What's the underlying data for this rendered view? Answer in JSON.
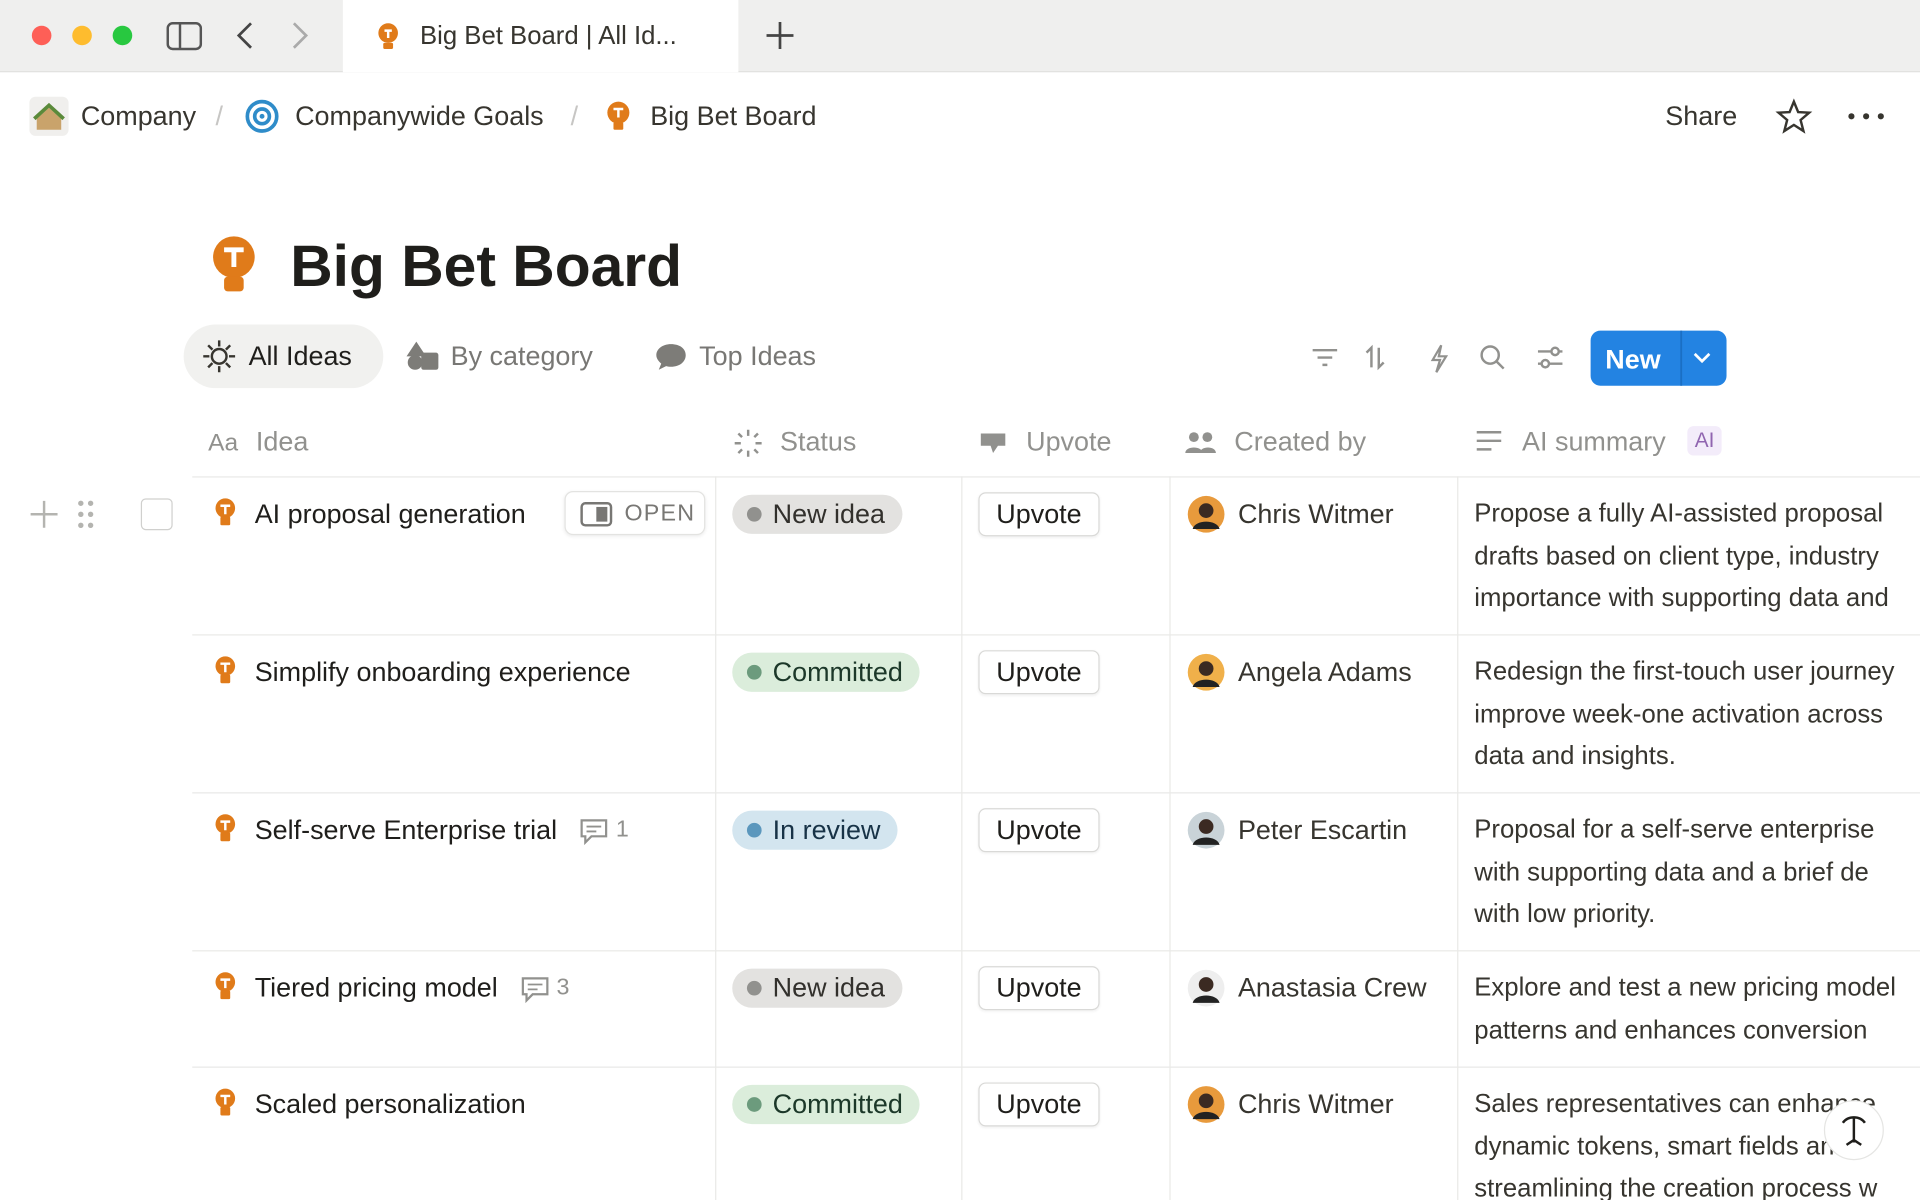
{
  "browser": {
    "tab_title": "Big Bet Board | All Id..."
  },
  "breadcrumbs": [
    "Company",
    "Companywide Goals",
    "Big Bet Board"
  ],
  "topbar": {
    "share": "Share"
  },
  "page": {
    "title": "Big Bet Board"
  },
  "views": [
    "All Ideas",
    "By category",
    "Top Ideas"
  ],
  "toolbar": {
    "new_button": "New"
  },
  "table": {
    "columns": [
      "Idea",
      "Status",
      "Upvote",
      "Created by",
      "AI summary"
    ],
    "ai_badge": "AI",
    "open_button": "OPEN",
    "rows": [
      {
        "idea": "AI proposal generation",
        "status": "New idea",
        "status_color": "gray",
        "upvote": "Upvote",
        "created_by": "Chris Witmer",
        "summary": [
          "Propose a fully AI-assisted proposal",
          "drafts based on client type, industry",
          "importance with supporting data and"
        ]
      },
      {
        "idea": "Simplify onboarding experience",
        "status": "Committed",
        "status_color": "green",
        "upvote": "Upvote",
        "created_by": "Angela Adams",
        "summary": [
          "Redesign the first-touch user journey",
          "improve week-one activation across",
          "data and insights."
        ]
      },
      {
        "idea": "Self-serve Enterprise trial",
        "comments": "1",
        "status": "In review",
        "status_color": "blue",
        "upvote": "Upvote",
        "created_by": "Peter Escartin",
        "summary": [
          "Proposal for a self-serve enterprise",
          "with supporting data and a brief de",
          "with low priority."
        ]
      },
      {
        "idea": "Tiered pricing model",
        "comments": "3",
        "status": "New idea",
        "status_color": "gray",
        "upvote": "Upvote",
        "created_by": "Anastasia Crew",
        "summary": [
          "Explore and test a new pricing model",
          "patterns and enhances conversion"
        ]
      },
      {
        "idea": "Scaled personalization",
        "status": "Committed",
        "status_color": "green",
        "upvote": "Upvote",
        "created_by": "Chris Witmer",
        "summary": [
          "Sales representatives can enhance",
          "dynamic tokens, smart fields and A",
          "streamlining the creation process w"
        ]
      }
    ]
  }
}
